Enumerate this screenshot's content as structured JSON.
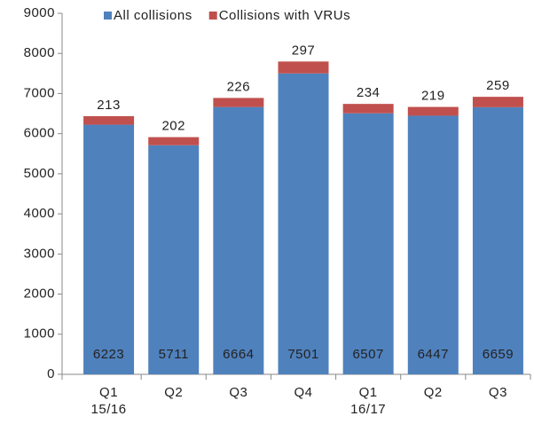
{
  "chart_data": {
    "type": "stacked_bar",
    "categories": [
      "Q1\n15/16",
      "Q2",
      "Q3",
      "Q4",
      "Q1\n16/17",
      "Q2",
      "Q3"
    ],
    "series": [
      {
        "name": "All collisions",
        "color": "#4f81bd",
        "values": [
          6223,
          5711,
          6664,
          7501,
          6507,
          6447,
          6659
        ]
      },
      {
        "name": "Collisions with VRUs",
        "color": "#c0504d",
        "values": [
          213,
          202,
          226,
          297,
          234,
          219,
          259
        ]
      }
    ],
    "ylim": [
      0,
      9000
    ],
    "yticks": [
      0,
      1000,
      2000,
      3000,
      4000,
      5000,
      6000,
      7000,
      8000,
      9000
    ],
    "legend": "top"
  }
}
